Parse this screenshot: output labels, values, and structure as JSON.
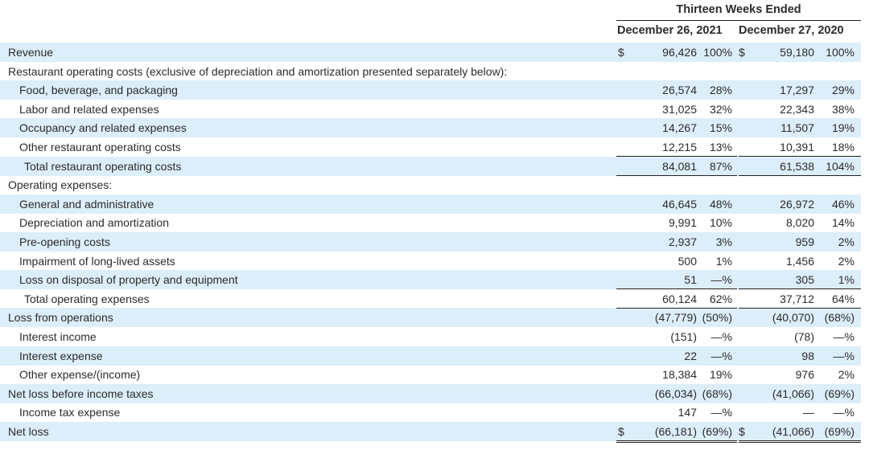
{
  "header": {
    "period_title": "Thirteen Weeks Ended",
    "col1": "December 26, 2021",
    "col2": "December 27, 2020"
  },
  "rows": [
    {
      "label": "Revenue",
      "indent": 0,
      "c1_sym": "$",
      "c1_val": "96,426",
      "c1_pct": "100%",
      "c2_sym": "$",
      "c2_val": "59,180",
      "c2_pct": "100%"
    },
    {
      "label": "Restaurant operating costs (exclusive of depreciation and amortization presented separately below):",
      "indent": 0,
      "c1_sym": "",
      "c1_val": "",
      "c1_pct": "",
      "c2_sym": "",
      "c2_val": "",
      "c2_pct": ""
    },
    {
      "label": "Food, beverage, and packaging",
      "indent": 1,
      "c1_sym": "",
      "c1_val": "26,574",
      "c1_pct": "28%",
      "c2_sym": "",
      "c2_val": "17,297",
      "c2_pct": "29%"
    },
    {
      "label": "Labor and related expenses",
      "indent": 1,
      "c1_sym": "",
      "c1_val": "31,025",
      "c1_pct": "32%",
      "c2_sym": "",
      "c2_val": "22,343",
      "c2_pct": "38%"
    },
    {
      "label": "Occupancy and related expenses",
      "indent": 1,
      "c1_sym": "",
      "c1_val": "14,267",
      "c1_pct": "15%",
      "c2_sym": "",
      "c2_val": "11,507",
      "c2_pct": "19%"
    },
    {
      "label": "Other restaurant operating costs",
      "indent": 1,
      "c1_sym": "",
      "c1_val": "12,215",
      "c1_pct": "13%",
      "c2_sym": "",
      "c2_val": "10,391",
      "c2_pct": "18%"
    },
    {
      "label": "Total restaurant operating costs",
      "indent": 2,
      "c1_sym": "",
      "c1_val": "84,081",
      "c1_pct": "87%",
      "c2_sym": "",
      "c2_val": "61,538",
      "c2_pct": "104%"
    },
    {
      "label": "Operating expenses:",
      "indent": 0,
      "c1_sym": "",
      "c1_val": "",
      "c1_pct": "",
      "c2_sym": "",
      "c2_val": "",
      "c2_pct": ""
    },
    {
      "label": "General and administrative",
      "indent": 1,
      "c1_sym": "",
      "c1_val": "46,645",
      "c1_pct": "48%",
      "c2_sym": "",
      "c2_val": "26,972",
      "c2_pct": "46%"
    },
    {
      "label": "Depreciation and amortization",
      "indent": 1,
      "c1_sym": "",
      "c1_val": "9,991",
      "c1_pct": "10%",
      "c2_sym": "",
      "c2_val": "8,020",
      "c2_pct": "14%"
    },
    {
      "label": "Pre-opening costs",
      "indent": 1,
      "c1_sym": "",
      "c1_val": "2,937",
      "c1_pct": "3%",
      "c2_sym": "",
      "c2_val": "959",
      "c2_pct": "2%"
    },
    {
      "label": "Impairment of long-lived assets",
      "indent": 1,
      "c1_sym": "",
      "c1_val": "500",
      "c1_pct": "1%",
      "c2_sym": "",
      "c2_val": "1,456",
      "c2_pct": "2%"
    },
    {
      "label": "Loss on disposal of property and equipment",
      "indent": 1,
      "c1_sym": "",
      "c1_val": "51",
      "c1_pct": "—%",
      "c2_sym": "",
      "c2_val": "305",
      "c2_pct": "1%"
    },
    {
      "label": "Total operating expenses",
      "indent": 2,
      "c1_sym": "",
      "c1_val": "60,124",
      "c1_pct": "62%",
      "c2_sym": "",
      "c2_val": "37,712",
      "c2_pct": "64%"
    },
    {
      "label": "Loss from operations",
      "indent": 0,
      "c1_sym": "",
      "c1_val": "(47,779)",
      "c1_pct": "(50%)",
      "c2_sym": "",
      "c2_val": "(40,070)",
      "c2_pct": "(68%)"
    },
    {
      "label": "Interest income",
      "indent": 1,
      "c1_sym": "",
      "c1_val": "(151)",
      "c1_pct": "—%",
      "c2_sym": "",
      "c2_val": "(78)",
      "c2_pct": "—%"
    },
    {
      "label": "Interest expense",
      "indent": 1,
      "c1_sym": "",
      "c1_val": "22",
      "c1_pct": "—%",
      "c2_sym": "",
      "c2_val": "98",
      "c2_pct": "—%"
    },
    {
      "label": "Other expense/(income)",
      "indent": 1,
      "c1_sym": "",
      "c1_val": "18,384",
      "c1_pct": "19%",
      "c2_sym": "",
      "c2_val": "976",
      "c2_pct": "2%"
    },
    {
      "label": "Net loss before income taxes",
      "indent": 0,
      "c1_sym": "",
      "c1_val": "(66,034)",
      "c1_pct": "(68%)",
      "c2_sym": "",
      "c2_val": "(41,066)",
      "c2_pct": "(69%)"
    },
    {
      "label": "Income tax expense",
      "indent": 1,
      "c1_sym": "",
      "c1_val": "147",
      "c1_pct": "—%",
      "c2_sym": "",
      "c2_val": "—",
      "c2_pct": "—%"
    },
    {
      "label": "Net loss",
      "indent": 0,
      "c1_sym": "$",
      "c1_val": "(66,181)",
      "c1_pct": "(69%)",
      "c2_sym": "$",
      "c2_val": "(41,066)",
      "c2_pct": "(69%)"
    }
  ]
}
